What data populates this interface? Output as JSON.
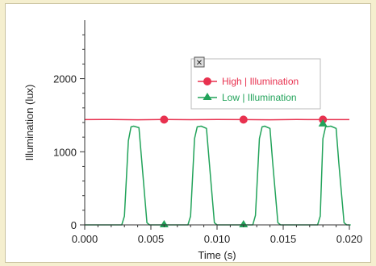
{
  "colors": {
    "high": "#e8314f",
    "low": "#22a35a",
    "axis": "#333333",
    "background": "#f5efcf",
    "plot_background": "#ffffff"
  },
  "legend": {
    "close_icon": "close-icon",
    "close_glyph": "✕"
  },
  "chart_data": {
    "type": "line",
    "xlabel": "Time (s)",
    "ylabel": "Illumination (lux)",
    "xlim": [
      0.0,
      0.02
    ],
    "ylim": [
      0,
      2800
    ],
    "xticks": [
      0.0,
      0.005,
      0.01,
      0.015,
      0.02
    ],
    "xtick_labels": [
      "0.000",
      "0.005",
      "0.010",
      "0.015",
      "0.020"
    ],
    "yticks": [
      0,
      1000,
      2000
    ],
    "ytick_labels": [
      "0",
      "1000",
      "2000"
    ],
    "grid": false,
    "legend_position": "top-right",
    "series": [
      {
        "name": "High | Illumination",
        "color": "#e8314f",
        "marker": "circle",
        "x": [
          0.0,
          0.002,
          0.004,
          0.006,
          0.008,
          0.01,
          0.012,
          0.014,
          0.016,
          0.018,
          0.02
        ],
        "y": [
          1440,
          1442,
          1438,
          1441,
          1439,
          1442,
          1440,
          1438,
          1441,
          1440,
          1440
        ],
        "markers_x": [
          0.006,
          0.012,
          0.018
        ],
        "markers_y": [
          1440,
          1440,
          1440
        ]
      },
      {
        "name": "Low | Illumination",
        "color": "#22a35a",
        "marker": "triangle",
        "x": [
          0.0,
          0.0028,
          0.003,
          0.0033,
          0.0035,
          0.0037,
          0.0041,
          0.0043,
          0.0047,
          0.0049,
          0.0078,
          0.008,
          0.0083,
          0.0085,
          0.0088,
          0.0092,
          0.0094,
          0.0098,
          0.01,
          0.0127,
          0.0129,
          0.0132,
          0.0134,
          0.0136,
          0.014,
          0.0142,
          0.0146,
          0.0148,
          0.0176,
          0.0178,
          0.018,
          0.0182,
          0.0186,
          0.019,
          0.0192,
          0.0196,
          0.0198,
          0.0201
        ],
        "y": [
          0,
          0,
          120,
          1150,
          1340,
          1350,
          1330,
          900,
          30,
          0,
          0,
          120,
          1180,
          1340,
          1350,
          1320,
          880,
          30,
          0,
          0,
          130,
          1180,
          1340,
          1350,
          1320,
          860,
          30,
          0,
          0,
          120,
          1180,
          1340,
          1350,
          1320,
          850,
          30,
          0,
          0
        ],
        "markers_x": [
          0.006,
          0.012,
          0.018
        ],
        "markers_y": [
          0,
          0,
          1380
        ]
      }
    ]
  }
}
